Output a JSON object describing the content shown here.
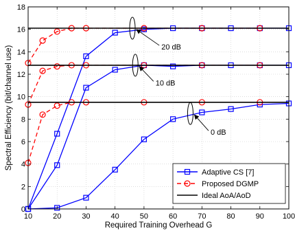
{
  "chart_data": {
    "type": "line",
    "xlabel": "Required Training Overhead G",
    "ylabel": "Spectral Efficiency (bit/channel use)",
    "xlim": [
      10,
      100
    ],
    "ylim": [
      0,
      18
    ],
    "xticks": [
      10,
      20,
      30,
      40,
      50,
      60,
      70,
      80,
      90,
      100
    ],
    "yticks": [
      0,
      2,
      4,
      6,
      8,
      10,
      12,
      14,
      16,
      18
    ],
    "grid": true,
    "legend_position": "bottom-right",
    "series": [
      {
        "name": "Adaptive CS [7]",
        "group": "20 dB",
        "color": "#0000ff",
        "marker": "square",
        "dash": "solid",
        "x": [
          10,
          20,
          30,
          40,
          50,
          60,
          70,
          80,
          90,
          100
        ],
        "y": [
          0,
          6.7,
          13.6,
          15.7,
          16.0,
          16.1,
          16.1,
          16.1,
          16.1,
          16.1
        ]
      },
      {
        "name": "Proposed DGMP",
        "group": "20 dB",
        "color": "#ff0000",
        "marker": "circle",
        "dash": "dashed",
        "x": [
          10,
          15,
          20,
          25,
          30,
          50,
          70,
          90
        ],
        "y": [
          13.0,
          15.0,
          15.8,
          16.1,
          16.1,
          16.1,
          16.1,
          16.1
        ]
      },
      {
        "name": "Ideal AoA/AoD",
        "group": "20 dB",
        "color": "#000000",
        "marker": "none",
        "dash": "solid",
        "x": [
          10,
          100
        ],
        "y": [
          16.1,
          16.1
        ]
      },
      {
        "name": "Adaptive CS [7]",
        "group": "10 dB",
        "color": "#0000ff",
        "marker": "square",
        "dash": "solid",
        "x": [
          10,
          20,
          30,
          40,
          50,
          60,
          70,
          80,
          90,
          100
        ],
        "y": [
          0,
          3.9,
          10.8,
          12.4,
          12.8,
          12.7,
          12.8,
          12.8,
          12.8,
          12.8
        ]
      },
      {
        "name": "Proposed DGMP",
        "group": "10 dB",
        "color": "#ff0000",
        "marker": "circle",
        "dash": "dashed",
        "x": [
          10,
          15,
          20,
          25,
          30,
          50,
          70,
          90
        ],
        "y": [
          9.3,
          12.3,
          12.7,
          12.8,
          12.8,
          12.8,
          12.8,
          12.8
        ]
      },
      {
        "name": "Ideal AoA/AoD",
        "group": "10 dB",
        "color": "#000000",
        "marker": "none",
        "dash": "solid",
        "x": [
          10,
          100
        ],
        "y": [
          12.8,
          12.8
        ]
      },
      {
        "name": "Adaptive CS [7]",
        "group": "0 dB",
        "color": "#0000ff",
        "marker": "square",
        "dash": "solid",
        "x": [
          10,
          20,
          30,
          40,
          50,
          60,
          70,
          80,
          90,
          100
        ],
        "y": [
          0,
          0.1,
          1.0,
          3.5,
          6.2,
          8.0,
          8.6,
          8.9,
          9.3,
          9.4
        ]
      },
      {
        "name": "Proposed DGMP",
        "group": "0 dB",
        "color": "#ff0000",
        "marker": "circle",
        "dash": "dashed",
        "x": [
          10,
          15,
          20,
          25,
          30,
          50,
          70,
          90
        ],
        "y": [
          4.1,
          8.4,
          9.2,
          9.5,
          9.5,
          9.5,
          9.5,
          9.5
        ]
      },
      {
        "name": "Ideal AoA/AoD",
        "group": "0 dB",
        "color": "#000000",
        "marker": "none",
        "dash": "solid",
        "x": [
          10,
          100
        ],
        "y": [
          9.5,
          9.5
        ]
      }
    ],
    "annotations": [
      {
        "text": "20 dB",
        "ellipse_at": [
          46,
          16.1
        ],
        "arrow_from": [
          56,
          14.2
        ]
      },
      {
        "text": "10 dB",
        "ellipse_at": [
          47,
          12.8
        ],
        "arrow_from": [
          54,
          11.0
        ]
      },
      {
        "text": "0 dB",
        "ellipse_at": [
          66,
          8.5
        ],
        "arrow_from": [
          73,
          6.6
        ]
      }
    ],
    "legend": [
      {
        "label": "Adaptive CS [7]",
        "color": "#0000ff",
        "marker": "square",
        "dash": "solid"
      },
      {
        "label": "Proposed DGMP",
        "color": "#ff0000",
        "marker": "circle",
        "dash": "dashed"
      },
      {
        "label": "Ideal AoA/AoD",
        "color": "#000000",
        "marker": "none",
        "dash": "solid"
      }
    ]
  }
}
